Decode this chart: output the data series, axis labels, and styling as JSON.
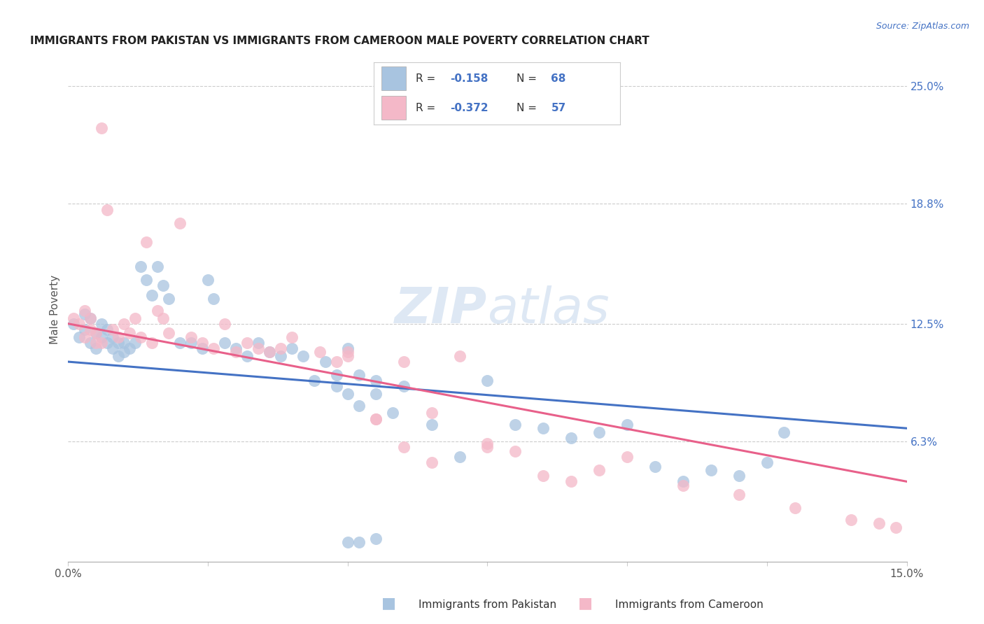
{
  "title": "IMMIGRANTS FROM PAKISTAN VS IMMIGRANTS FROM CAMEROON MALE POVERTY CORRELATION CHART",
  "source": "Source: ZipAtlas.com",
  "ylabel_label": "Male Poverty",
  "right_ytick_vals": [
    0.063,
    0.125,
    0.188,
    0.25
  ],
  "right_ytick_labels": [
    "6.3%",
    "12.5%",
    "18.8%",
    "25.0%"
  ],
  "xlim": [
    0.0,
    0.15
  ],
  "ylim": [
    0.0,
    0.265
  ],
  "legend_r1_val": "-0.158",
  "legend_n1_val": "68",
  "legend_r2_val": "-0.372",
  "legend_n2_val": "57",
  "pakistan_color": "#a8c4e0",
  "cameroon_color": "#f4b8c8",
  "pakistan_line_color": "#4472c4",
  "cameroon_line_color": "#e8608a",
  "watermark": "ZIPatlas",
  "pakistan_scatter_x": [
    0.001,
    0.002,
    0.003,
    0.003,
    0.004,
    0.004,
    0.005,
    0.005,
    0.006,
    0.006,
    0.007,
    0.007,
    0.008,
    0.008,
    0.009,
    0.009,
    0.01,
    0.01,
    0.011,
    0.012,
    0.013,
    0.014,
    0.015,
    0.016,
    0.017,
    0.018,
    0.02,
    0.022,
    0.024,
    0.025,
    0.026,
    0.028,
    0.03,
    0.032,
    0.034,
    0.036,
    0.038,
    0.04,
    0.042,
    0.044,
    0.046,
    0.048,
    0.05,
    0.052,
    0.055,
    0.058,
    0.06,
    0.065,
    0.07,
    0.075,
    0.08,
    0.085,
    0.09,
    0.095,
    0.1,
    0.105,
    0.11,
    0.115,
    0.12,
    0.125,
    0.048,
    0.05,
    0.052,
    0.055,
    0.05,
    0.052,
    0.055,
    0.128
  ],
  "pakistan_scatter_y": [
    0.125,
    0.118,
    0.122,
    0.13,
    0.115,
    0.128,
    0.12,
    0.112,
    0.118,
    0.125,
    0.115,
    0.122,
    0.112,
    0.118,
    0.115,
    0.108,
    0.11,
    0.115,
    0.112,
    0.115,
    0.155,
    0.148,
    0.14,
    0.155,
    0.145,
    0.138,
    0.115,
    0.115,
    0.112,
    0.148,
    0.138,
    0.115,
    0.112,
    0.108,
    0.115,
    0.11,
    0.108,
    0.112,
    0.108,
    0.095,
    0.105,
    0.098,
    0.112,
    0.098,
    0.095,
    0.078,
    0.092,
    0.072,
    0.055,
    0.095,
    0.072,
    0.07,
    0.065,
    0.068,
    0.072,
    0.05,
    0.042,
    0.048,
    0.045,
    0.052,
    0.092,
    0.088,
    0.082,
    0.088,
    0.01,
    0.01,
    0.012,
    0.068
  ],
  "cameroon_scatter_x": [
    0.001,
    0.002,
    0.003,
    0.003,
    0.004,
    0.004,
    0.005,
    0.005,
    0.006,
    0.006,
    0.007,
    0.008,
    0.009,
    0.01,
    0.011,
    0.012,
    0.013,
    0.014,
    0.015,
    0.016,
    0.017,
    0.018,
    0.02,
    0.022,
    0.024,
    0.026,
    0.028,
    0.03,
    0.032,
    0.034,
    0.036,
    0.038,
    0.04,
    0.045,
    0.05,
    0.055,
    0.06,
    0.065,
    0.07,
    0.075,
    0.08,
    0.085,
    0.09,
    0.095,
    0.1,
    0.11,
    0.12,
    0.13,
    0.14,
    0.145,
    0.05,
    0.055,
    0.06,
    0.065,
    0.048,
    0.075,
    0.148
  ],
  "cameroon_scatter_y": [
    0.128,
    0.125,
    0.132,
    0.118,
    0.122,
    0.128,
    0.12,
    0.115,
    0.228,
    0.115,
    0.185,
    0.122,
    0.118,
    0.125,
    0.12,
    0.128,
    0.118,
    0.168,
    0.115,
    0.132,
    0.128,
    0.12,
    0.178,
    0.118,
    0.115,
    0.112,
    0.125,
    0.11,
    0.115,
    0.112,
    0.11,
    0.112,
    0.118,
    0.11,
    0.108,
    0.075,
    0.105,
    0.078,
    0.108,
    0.062,
    0.058,
    0.045,
    0.042,
    0.048,
    0.055,
    0.04,
    0.035,
    0.028,
    0.022,
    0.02,
    0.11,
    0.075,
    0.06,
    0.052,
    0.105,
    0.06,
    0.018
  ]
}
